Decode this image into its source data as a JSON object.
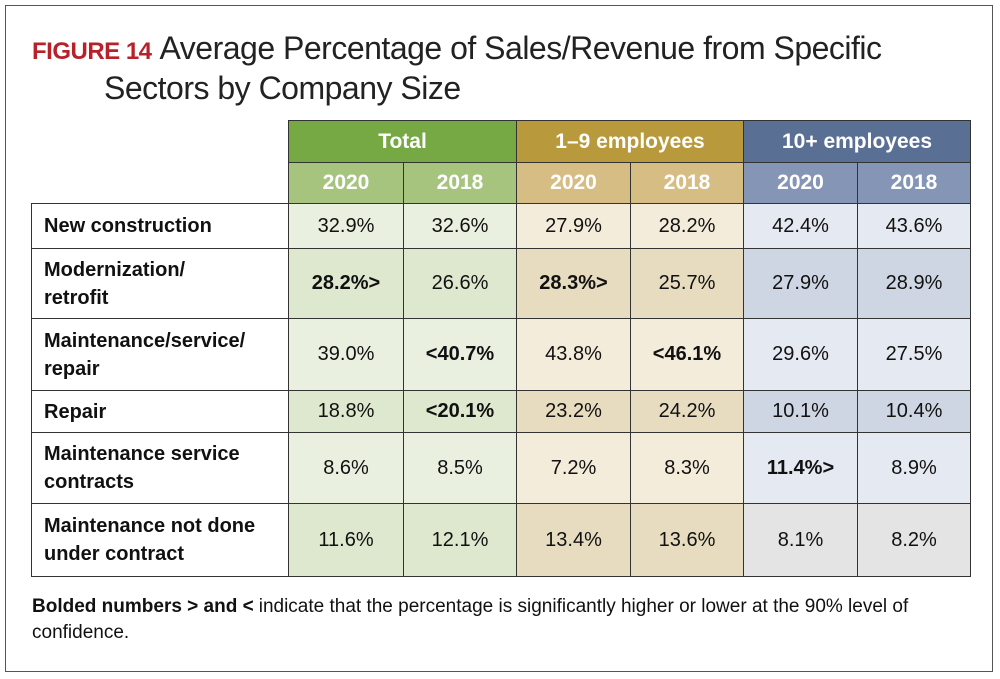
{
  "figure_label": "FIGURE 14",
  "title_lines": [
    "Average Percentage of Sales/Revenue from Specific",
    "Sectors by Company Size"
  ],
  "table": {
    "groups": [
      {
        "name": "Total",
        "years": [
          "2020",
          "2018"
        ]
      },
      {
        "name": "1–9 employees",
        "years": [
          "2020",
          "2018"
        ]
      },
      {
        "name": "10+ employees",
        "years": [
          "2020",
          "2018"
        ]
      }
    ],
    "rows": [
      {
        "label": "New construction",
        "cells": [
          {
            "text": "32.9%"
          },
          {
            "text": "32.6%"
          },
          {
            "text": "27.9%"
          },
          {
            "text": "28.2%"
          },
          {
            "text": "42.4%"
          },
          {
            "text": "43.6%"
          }
        ]
      },
      {
        "label": "Modernization/\nretrofit",
        "cells": [
          {
            "text": "28.2%>",
            "bold": true
          },
          {
            "text": "26.6%"
          },
          {
            "text": "28.3%>",
            "bold": true
          },
          {
            "text": "25.7%"
          },
          {
            "text": "27.9%"
          },
          {
            "text": "28.9%"
          }
        ]
      },
      {
        "label": "Maintenance/service/\nrepair",
        "cells": [
          {
            "text": "39.0%"
          },
          {
            "text": "<40.7%",
            "bold": true
          },
          {
            "text": "43.8%"
          },
          {
            "text": "<46.1%",
            "bold": true
          },
          {
            "text": "29.6%"
          },
          {
            "text": "27.5%"
          }
        ]
      },
      {
        "label": "Repair",
        "cells": [
          {
            "text": "18.8%"
          },
          {
            "text": "<20.1%",
            "bold": true
          },
          {
            "text": "23.2%"
          },
          {
            "text": "24.2%"
          },
          {
            "text": "10.1%"
          },
          {
            "text": "10.4%"
          }
        ]
      },
      {
        "label": "Maintenance service\ncontracts",
        "cells": [
          {
            "text": "8.6%"
          },
          {
            "text": "8.5%"
          },
          {
            "text": "7.2%"
          },
          {
            "text": "8.3%"
          },
          {
            "text": "11.4%>",
            "bold": true
          },
          {
            "text": "8.9%"
          }
        ]
      },
      {
        "label": "Maintenance not done\nunder contract",
        "cells": [
          {
            "text": "11.6%"
          },
          {
            "text": "12.1%"
          },
          {
            "text": "13.4%"
          },
          {
            "text": "13.6%"
          },
          {
            "text": "8.1%"
          },
          {
            "text": "8.2%"
          }
        ]
      }
    ]
  },
  "footnote": {
    "bold": "Bolded numbers > and <",
    "text": "indicate that the percentage is significantly higher or lower at the 90% level of confidence."
  }
}
